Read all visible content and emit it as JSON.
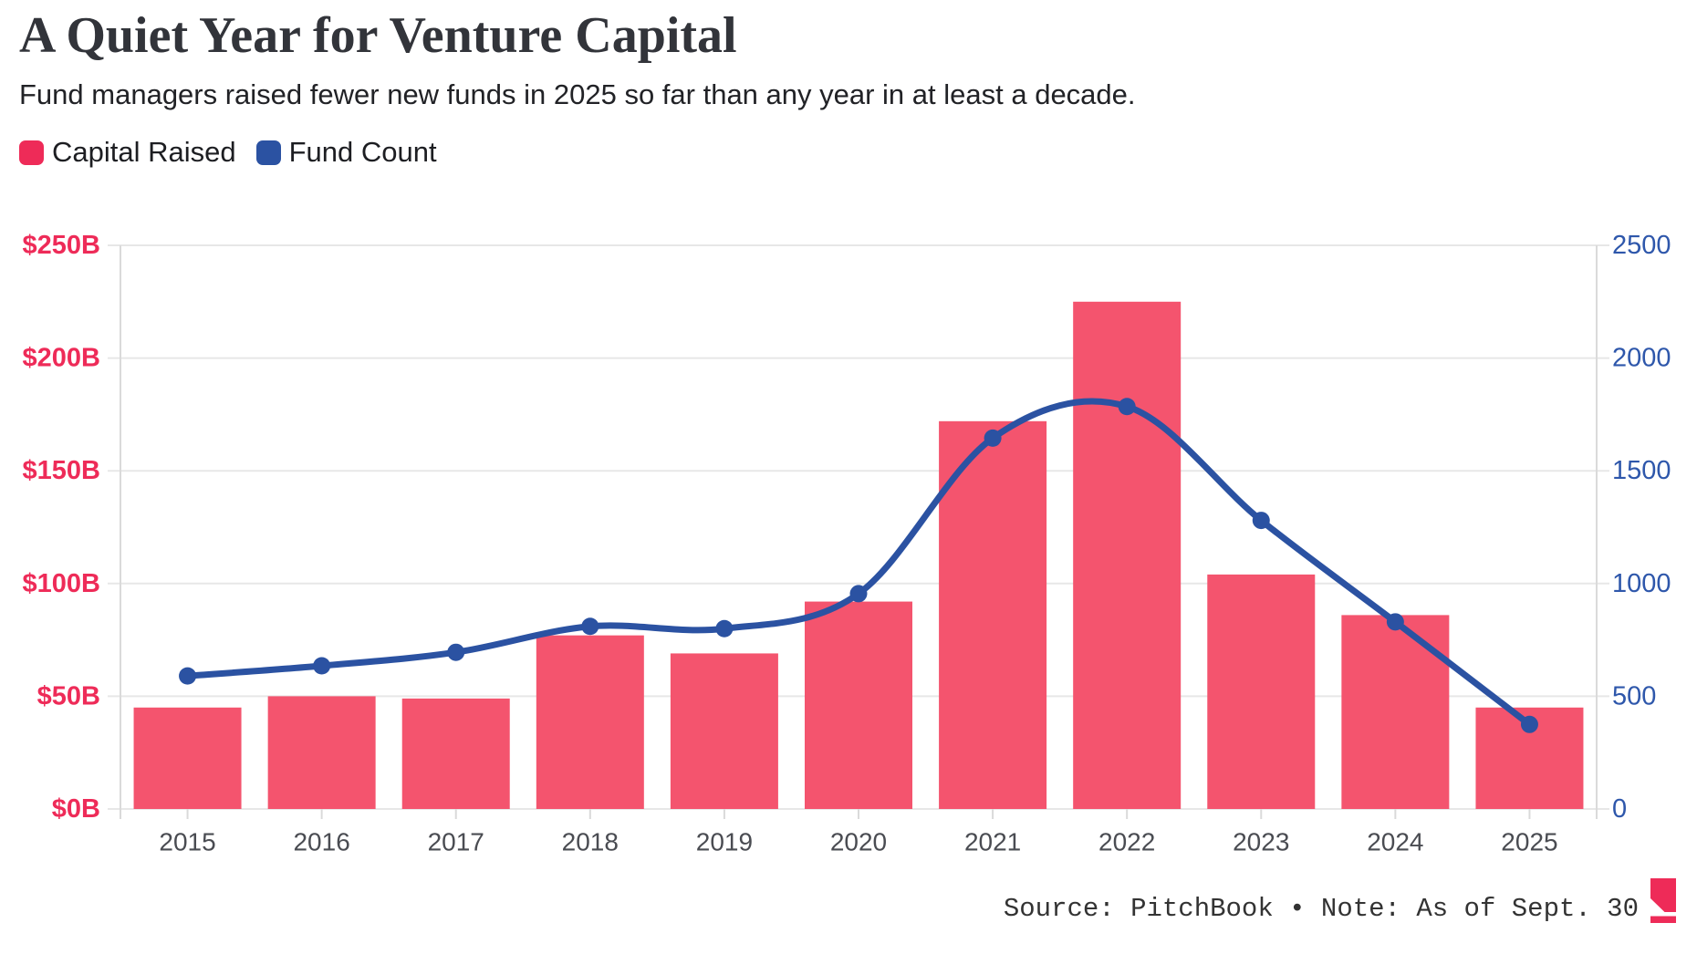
{
  "header": {
    "title": "A Quiet Year for Venture Capital",
    "subtitle": "Fund managers raised fewer new funds in 2025 so far than any year in at least a decade."
  },
  "legend": [
    {
      "label": "Capital Raised",
      "color": "#ee2b58"
    },
    {
      "label": "Fund Count",
      "color": "#2b52a2"
    }
  ],
  "footer": {
    "text": "Source: PitchBook • Note: As of Sept. 30"
  },
  "colors": {
    "bar": "#f4546e",
    "line": "#2b52a2",
    "dot": "#2b52a2",
    "left_axis_label": "#ee2b58",
    "right_axis_label": "#2e57ab",
    "gridline": "#e7e7e7",
    "axis_border": "#dadada",
    "x_label": "#4a4c52",
    "logo": "#ee2b58"
  },
  "chart_data": {
    "type": "bar",
    "subtype": "dual-axis bar + line",
    "title": "A Quiet Year for Venture Capital",
    "categories": [
      "2015",
      "2016",
      "2017",
      "2018",
      "2019",
      "2020",
      "2021",
      "2022",
      "2023",
      "2024",
      "2025"
    ],
    "series": [
      {
        "name": "Capital Raised",
        "type": "bar",
        "axis": "left",
        "unit": "$B",
        "values": [
          45,
          50,
          49,
          77,
          69,
          92,
          172,
          225,
          104,
          86,
          45
        ]
      },
      {
        "name": "Fund Count",
        "type": "line",
        "axis": "right",
        "unit": "funds",
        "values": [
          590,
          635,
          695,
          810,
          800,
          955,
          1645,
          1785,
          1280,
          830,
          375
        ]
      }
    ],
    "y_left": {
      "min": 0,
      "max": 250,
      "ticks": [
        {
          "label": "$250B",
          "value": 250
        },
        {
          "label": "$200B",
          "value": 200
        },
        {
          "label": "$150B",
          "value": 150
        },
        {
          "label": "$100B",
          "value": 100
        },
        {
          "label": "$50B",
          "value": 50
        },
        {
          "label": "$0B",
          "value": 0
        }
      ]
    },
    "y_right": {
      "min": 0,
      "max": 2500,
      "ticks": [
        {
          "label": "2500",
          "value": 2500
        },
        {
          "label": "2000",
          "value": 2000
        },
        {
          "label": "1500",
          "value": 1500
        },
        {
          "label": "1000",
          "value": 1000
        },
        {
          "label": "500",
          "value": 500
        },
        {
          "label": "0",
          "value": 0
        }
      ]
    },
    "grid": "horizontal",
    "legend_position": "top-left"
  }
}
